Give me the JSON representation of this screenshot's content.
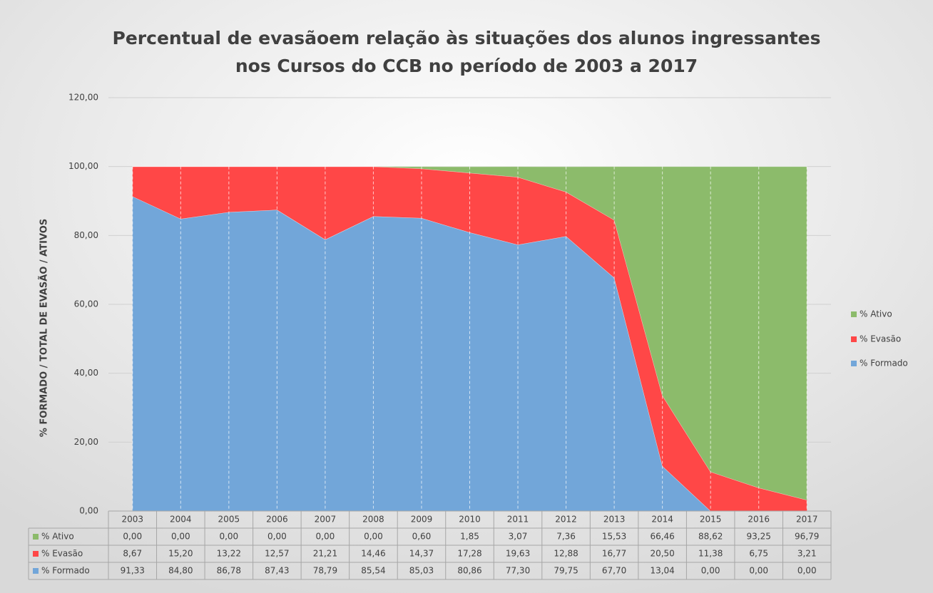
{
  "chart_data": {
    "type": "stacked_area",
    "title": [
      "Percentual de evasãoem relação às situações dos alunos ingressantes",
      "nos  Cursos do CCB no período de 2003 a 2017"
    ],
    "y_label": "% FORMADO / TOTAL DE EVASÃO / ATIVOS",
    "categories": [
      "2003",
      "2004",
      "2005",
      "2006",
      "2007",
      "2008",
      "2009",
      "2010",
      "2011",
      "2012",
      "2013",
      "2014",
      "2015",
      "2016",
      "2017"
    ],
    "series": [
      {
        "name": "% Ativo",
        "color": "#8cbb6b",
        "values": [
          0,
          0,
          0,
          0,
          0,
          0,
          0.6,
          1.85,
          3.07,
          7.36,
          15.53,
          66.46,
          88.62,
          93.25,
          96.79
        ],
        "value_labels": [
          "0,00",
          "0,00",
          "0,00",
          "0,00",
          "0,00",
          "0,00",
          "0,60",
          "1,85",
          "3,07",
          "7,36",
          "15,53",
          "66,46",
          "88,62",
          "93,25",
          "96,79"
        ]
      },
      {
        "name": "% Evasão",
        "color": "#ff4747",
        "values": [
          8.67,
          15.2,
          13.22,
          12.57,
          21.21,
          14.46,
          14.37,
          17.28,
          19.63,
          12.88,
          16.77,
          20.5,
          11.38,
          6.75,
          3.21
        ],
        "value_labels": [
          "8,67",
          "15,20",
          "13,22",
          "12,57",
          "21,21",
          "14,46",
          "14,37",
          "17,28",
          "19,63",
          "12,88",
          "16,77",
          "20,50",
          "11,38",
          "6,75",
          "3,21"
        ]
      },
      {
        "name": "% Formado",
        "color": "#72a6d9",
        "values": [
          91.33,
          84.8,
          86.78,
          87.43,
          78.79,
          85.54,
          85.03,
          80.86,
          77.3,
          79.75,
          67.7,
          13.04,
          0,
          0,
          0
        ],
        "value_labels": [
          "91,33",
          "84,80",
          "86,78",
          "87,43",
          "78,79",
          "85,54",
          "85,03",
          "80,86",
          "77,30",
          "79,75",
          "67,70",
          "13,04",
          "0,00",
          "0,00",
          "0,00"
        ]
      }
    ],
    "ylim": [
      0,
      120
    ],
    "yticks": [
      {
        "value": 0,
        "label": "0,00"
      },
      {
        "value": 20,
        "label": "20,00"
      },
      {
        "value": 40,
        "label": "40,00"
      },
      {
        "value": 60,
        "label": "60,00"
      },
      {
        "value": 80,
        "label": "80,00"
      },
      {
        "value": 100,
        "label": "100,00"
      },
      {
        "value": 120,
        "label": "120,00"
      }
    ],
    "grid": true,
    "legend": "right"
  }
}
